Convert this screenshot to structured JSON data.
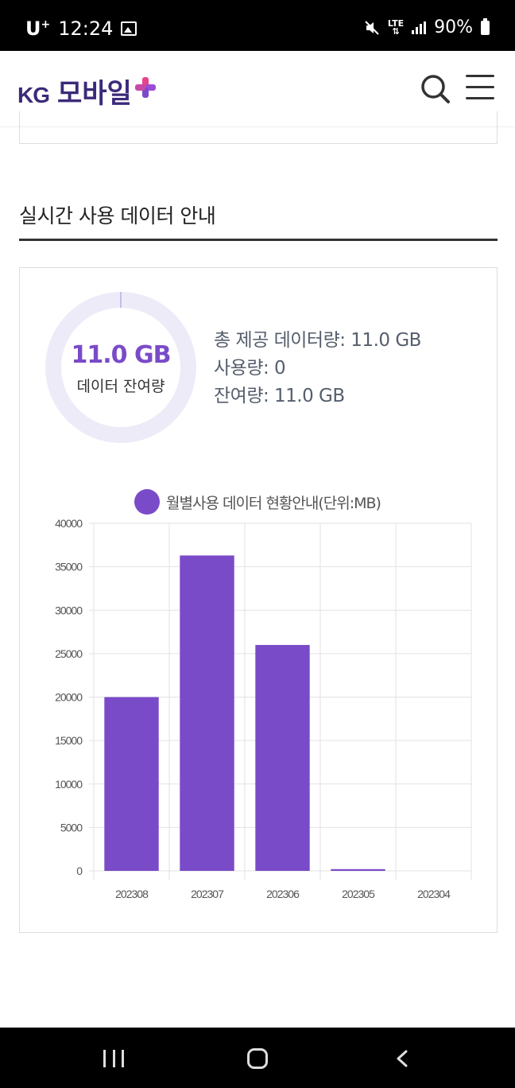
{
  "status_bar": {
    "carrier": "U",
    "carrier_sup": "+",
    "time": "12:24",
    "network": "LTE",
    "battery": "90%"
  },
  "header": {
    "logo_kg": "KG",
    "logo_brand": "모바일",
    "colors": {
      "brand": "#3c2a7a",
      "accent": "#7a4bc8"
    }
  },
  "section": {
    "title": "실시간 사용 데이터 안내"
  },
  "usage": {
    "remaining_value": "11.0 GB",
    "remaining_label": "데이터 잔여량",
    "used_fraction": 0,
    "total_line": "총 제공 데이터량: 11.0 GB",
    "used_line": "사용량: 0",
    "remaining_line": "잔여량: 11.0 GB"
  },
  "chart_data": {
    "type": "bar",
    "title": "",
    "legend": "월별사용 데이터 현황안내(단위:MB)",
    "categories": [
      "202308",
      "202307",
      "202306",
      "202305",
      "202304"
    ],
    "series": [
      {
        "name": "월별사용 데이터 현황안내(단위:MB)",
        "values": [
          20000,
          36300,
          26000,
          200,
          0
        ]
      }
    ],
    "ylim": [
      0,
      40000
    ],
    "yticks": [
      "40000",
      "35000",
      "30000",
      "25000",
      "20000",
      "15000",
      "10000",
      "5000",
      "0"
    ],
    "grid": true,
    "legend_position": "top",
    "color": "#7a4bc8"
  }
}
